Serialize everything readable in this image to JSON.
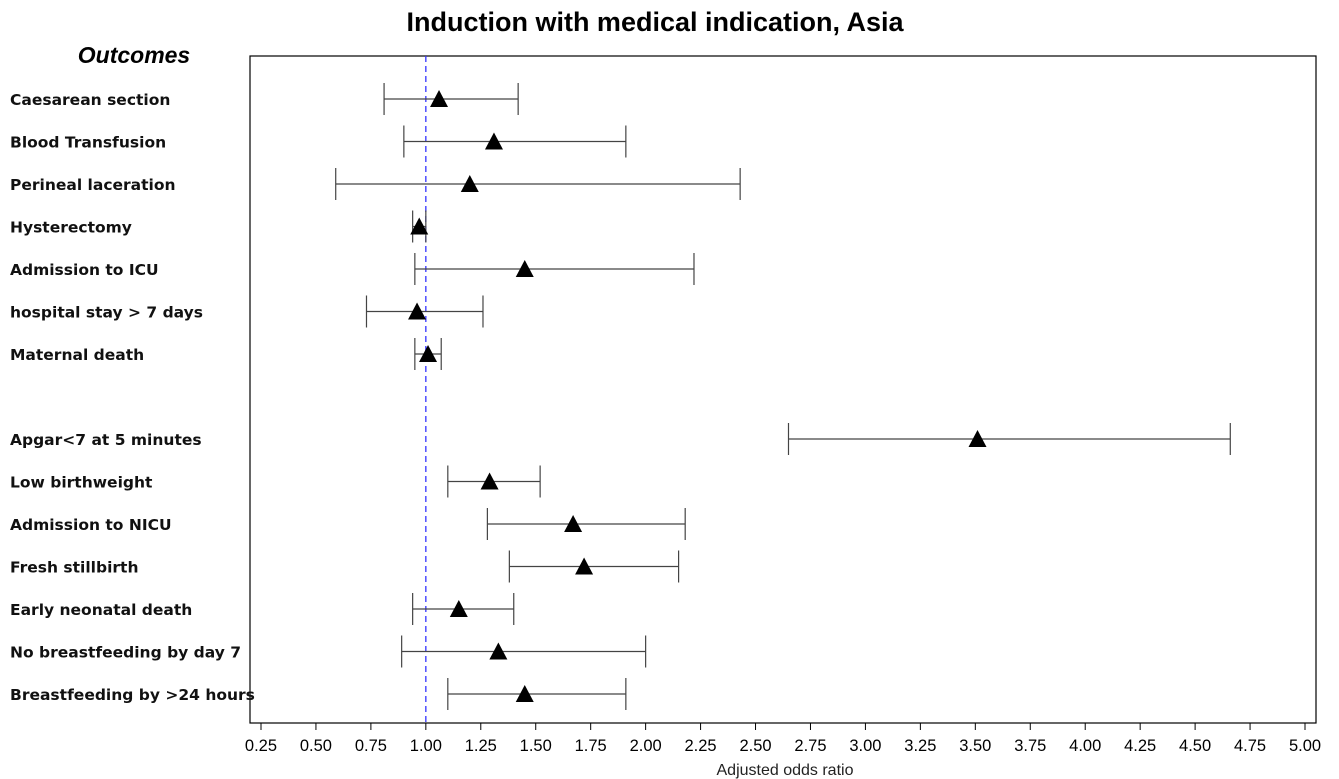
{
  "chart_data": {
    "type": "forest",
    "title": "Induction with medical indication, Asia",
    "rows_heading": "Outcomes",
    "xlabel": "Adjusted odds ratio",
    "xlim": [
      0.2,
      5.05
    ],
    "xticks": [
      "0.25",
      "0.50",
      "0.75",
      "1.00",
      "1.25",
      "1.50",
      "1.75",
      "2.00",
      "2.25",
      "2.50",
      "2.75",
      "3.00",
      "3.25",
      "3.50",
      "3.75",
      "4.00",
      "4.25",
      "4.50",
      "4.75",
      "5.00"
    ],
    "reference_line": 1.0,
    "marker": "triangle",
    "colors": {
      "reference_line": "#3333ff",
      "marker": "#000000",
      "whisker": "#444444",
      "frame": "#000000"
    },
    "groups": [
      {
        "rows": [
          {
            "label": "Caesarean section",
            "or": 1.06,
            "lower": 0.81,
            "upper": 1.42
          },
          {
            "label": "Blood Transfusion",
            "or": 1.31,
            "lower": 0.9,
            "upper": 1.91
          },
          {
            "label": "Perineal laceration",
            "or": 1.2,
            "lower": 0.59,
            "upper": 2.43
          },
          {
            "label": "Hysterectomy",
            "or": 0.97,
            "lower": 0.94,
            "upper": 1.0
          },
          {
            "label": "Admission to ICU",
            "or": 1.45,
            "lower": 0.95,
            "upper": 2.22
          },
          {
            "label": "hospital stay > 7 days",
            "or": 0.96,
            "lower": 0.73,
            "upper": 1.26
          },
          {
            "label": "Maternal death",
            "or": 1.01,
            "lower": 0.95,
            "upper": 1.07
          }
        ]
      },
      {
        "rows": [
          {
            "label": "Apgar<7 at 5 minutes",
            "or": 3.51,
            "lower": 2.65,
            "upper": 4.66
          },
          {
            "label": "Low birthweight",
            "or": 1.29,
            "lower": 1.1,
            "upper": 1.52
          },
          {
            "label": "Admission to NICU",
            "or": 1.67,
            "lower": 1.28,
            "upper": 2.18
          },
          {
            "label": "Fresh stillbirth",
            "or": 1.72,
            "lower": 1.38,
            "upper": 2.15
          },
          {
            "label": "Early neonatal death",
            "or": 1.15,
            "lower": 0.94,
            "upper": 1.4
          },
          {
            "label": "No breastfeeding by day 7",
            "or": 1.33,
            "lower": 0.89,
            "upper": 2.0
          },
          {
            "label": "Breastfeeding by >24 hours",
            "or": 1.45,
            "lower": 1.1,
            "upper": 1.91
          }
        ]
      }
    ]
  }
}
